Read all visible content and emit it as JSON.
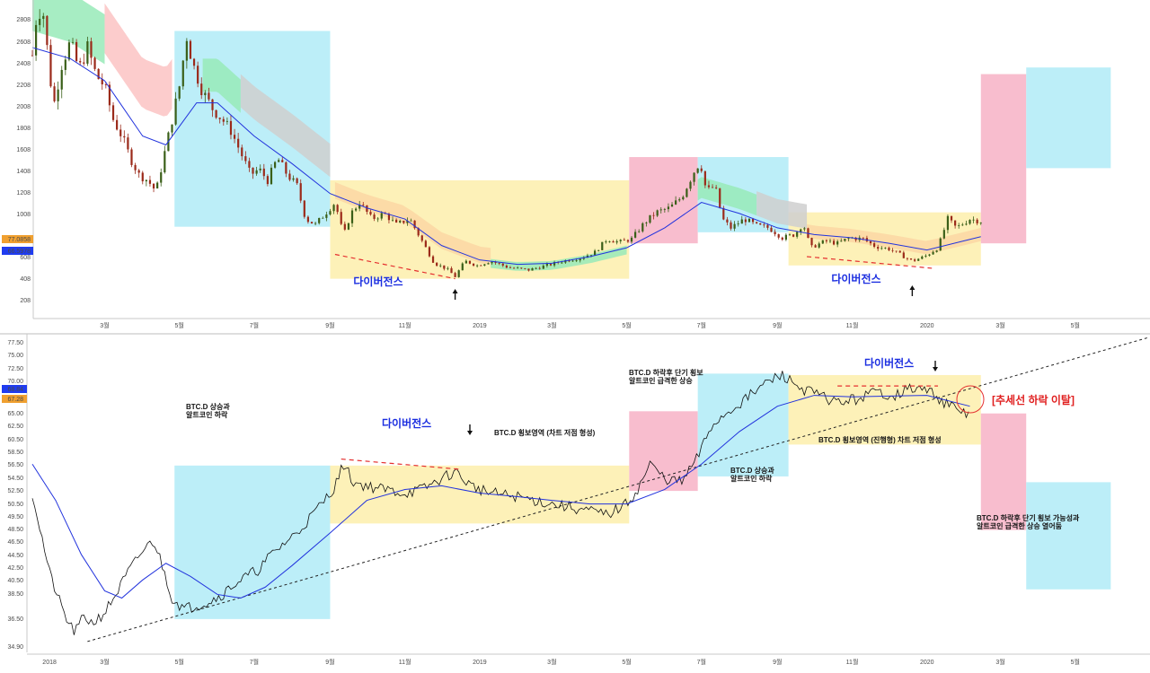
{
  "colors": {
    "zone_blue": "#b5ecf7",
    "zone_yellow": "#fdefb0",
    "zone_pink": "#f7b6c9",
    "cloud_green": "#98eab8",
    "cloud_red": "#fbc3c3",
    "cloud_gray": "#cfcfcf",
    "cloud_orange": "#fcd7a3",
    "ma_line": "#2233dd",
    "candle_up": "#3a5f18",
    "candle_down": "#9b2a1a",
    "price_line": "#111111",
    "divergence": "#e53030",
    "trendline": "#222222",
    "badge_orange": "#f0a030",
    "badge_blue": "#1f3cf0"
  },
  "chart_data": [
    {
      "type": "candlestick",
      "title": "",
      "y_ticks": [
        "2808",
        "2608",
        "2408",
        "2208",
        "2008",
        "1808",
        "1608",
        "1408",
        "1208",
        "1008",
        "608",
        "408",
        "208"
      ],
      "x_ticks": [
        "3월",
        "5월",
        "7월",
        "9월",
        "11월",
        "2019",
        "3월",
        "5월",
        "7월",
        "9월",
        "11월",
        "2020",
        "3월",
        "5월"
      ],
      "price_badges": [
        "77.0858",
        "66.5978"
      ],
      "annotations": [
        "다이버전스",
        "다이버전스"
      ],
      "arrows": [
        "up",
        "up"
      ],
      "zones": [
        {
          "color": "blue",
          "from": "2018-04-27",
          "to": "2018-09-01",
          "y_top": 2600,
          "y_bottom": 830
        },
        {
          "color": "yellow",
          "from": "2018-09-01",
          "to": "2019-05-03",
          "y_top": 1250,
          "y_bottom": 360
        },
        {
          "color": "pink",
          "from": "2019-05-03",
          "to": "2019-06-28",
          "y_top": 1460,
          "y_bottom": 680
        },
        {
          "color": "blue",
          "from": "2019-06-28",
          "to": "2019-09-10",
          "y_top": 1460,
          "y_bottom": 780
        },
        {
          "color": "yellow",
          "from": "2019-09-10",
          "to": "2020-02-14",
          "y_top": 960,
          "y_bottom": 480
        },
        {
          "color": "pink",
          "from": "2020-02-14",
          "to": "2020-03-22",
          "y_top": 2210,
          "y_bottom": 680
        },
        {
          "color": "blue",
          "from": "2020-03-22",
          "to": "2020-05-30",
          "y_top": 2270,
          "y_bottom": 1360
        }
      ],
      "price_path": [
        [
          "2018-01-01",
          2380
        ],
        [
          "2018-01-05",
          2800
        ],
        [
          "2018-01-10",
          2750
        ],
        [
          "2018-01-15",
          2250
        ],
        [
          "2018-01-18",
          1900
        ],
        [
          "2018-01-25",
          2300
        ],
        [
          "2018-02-01",
          2500
        ],
        [
          "2018-02-08",
          2250
        ],
        [
          "2018-02-15",
          2450
        ],
        [
          "2018-02-22",
          2200
        ],
        [
          "2018-03-01",
          2100
        ],
        [
          "2018-03-08",
          1800
        ],
        [
          "2018-03-15",
          1650
        ],
        [
          "2018-03-22",
          1450
        ],
        [
          "2018-03-29",
          1300
        ],
        [
          "2018-04-05",
          1250
        ],
        [
          "2018-04-12",
          1150
        ],
        [
          "2018-04-19",
          1500
        ],
        [
          "2018-04-26",
          1850
        ],
        [
          "2018-05-03",
          2200
        ],
        [
          "2018-05-06",
          2600
        ],
        [
          "2018-05-12",
          2300
        ],
        [
          "2018-05-20",
          2050
        ],
        [
          "2018-05-28",
          1900
        ],
        [
          "2018-06-05",
          1800
        ],
        [
          "2018-06-12",
          1700
        ],
        [
          "2018-06-20",
          1500
        ],
        [
          "2018-06-28",
          1300
        ],
        [
          "2018-07-05",
          1350
        ],
        [
          "2018-07-12",
          1250
        ],
        [
          "2018-07-20",
          1450
        ],
        [
          "2018-07-28",
          1300
        ],
        [
          "2018-08-05",
          1200
        ],
        [
          "2018-08-12",
          900
        ],
        [
          "2018-08-20",
          850
        ],
        [
          "2018-08-28",
          950
        ],
        [
          "2018-09-05",
          1050
        ],
        [
          "2018-09-12",
          750
        ],
        [
          "2018-09-18",
          950
        ],
        [
          "2018-09-25",
          1050
        ],
        [
          "2018-10-05",
          900
        ],
        [
          "2018-10-15",
          950
        ],
        [
          "2018-10-25",
          850
        ],
        [
          "2018-11-05",
          900
        ],
        [
          "2018-11-15",
          700
        ],
        [
          "2018-11-25",
          500
        ],
        [
          "2018-12-05",
          450
        ],
        [
          "2018-12-12",
          380
        ],
        [
          "2018-12-20",
          520
        ],
        [
          "2018-12-30",
          480
        ],
        [
          "2019-01-10",
          520
        ],
        [
          "2019-01-25",
          460
        ],
        [
          "2019-02-10",
          440
        ],
        [
          "2019-02-25",
          480
        ],
        [
          "2019-03-10",
          520
        ],
        [
          "2019-03-25",
          550
        ],
        [
          "2019-04-05",
          600
        ],
        [
          "2019-04-15",
          720
        ],
        [
          "2019-04-25",
          690
        ],
        [
          "2019-05-05",
          720
        ],
        [
          "2019-05-15",
          860
        ],
        [
          "2019-05-25",
          960
        ],
        [
          "2019-06-05",
          1000
        ],
        [
          "2019-06-15",
          1100
        ],
        [
          "2019-06-25",
          1330
        ],
        [
          "2019-06-30",
          1420
        ],
        [
          "2019-07-05",
          1150
        ],
        [
          "2019-07-12",
          1200
        ],
        [
          "2019-07-18",
          900
        ],
        [
          "2019-07-25",
          820
        ],
        [
          "2019-08-05",
          900
        ],
        [
          "2019-08-15",
          840
        ],
        [
          "2019-08-25",
          820
        ],
        [
          "2019-09-05",
          730
        ],
        [
          "2019-09-15",
          760
        ],
        [
          "2019-09-22",
          860
        ],
        [
          "2019-09-28",
          640
        ],
        [
          "2019-10-10",
          700
        ],
        [
          "2019-10-20",
          680
        ],
        [
          "2019-10-30",
          730
        ],
        [
          "2019-11-10",
          720
        ],
        [
          "2019-11-20",
          650
        ],
        [
          "2019-12-01",
          630
        ],
        [
          "2019-12-10",
          580
        ],
        [
          "2019-12-20",
          520
        ],
        [
          "2019-12-30",
          560
        ],
        [
          "2020-01-10",
          640
        ],
        [
          "2020-01-18",
          900
        ],
        [
          "2020-01-25",
          820
        ],
        [
          "2020-02-05",
          900
        ],
        [
          "2020-02-14",
          880
        ]
      ],
      "ma_path": [
        [
          "2018-01-01",
          2450
        ],
        [
          "2018-02-01",
          2350
        ],
        [
          "2018-03-01",
          2150
        ],
        [
          "2018-04-01",
          1650
        ],
        [
          "2018-04-20",
          1570
        ],
        [
          "2018-05-15",
          1950
        ],
        [
          "2018-06-01",
          1950
        ],
        [
          "2018-07-01",
          1650
        ],
        [
          "2018-08-01",
          1400
        ],
        [
          "2018-09-01",
          1130
        ],
        [
          "2018-10-01",
          1000
        ],
        [
          "2018-11-01",
          900
        ],
        [
          "2018-12-01",
          660
        ],
        [
          "2019-01-01",
          530
        ],
        [
          "2019-02-01",
          490
        ],
        [
          "2019-03-01",
          500
        ],
        [
          "2019-04-01",
          560
        ],
        [
          "2019-05-01",
          640
        ],
        [
          "2019-06-01",
          820
        ],
        [
          "2019-07-01",
          1050
        ],
        [
          "2019-08-01",
          950
        ],
        [
          "2019-09-01",
          820
        ],
        [
          "2019-10-01",
          760
        ],
        [
          "2019-11-01",
          730
        ],
        [
          "2019-12-01",
          680
        ],
        [
          "2020-01-01",
          620
        ],
        [
          "2020-02-14",
          740
        ]
      ]
    },
    {
      "type": "line",
      "title": "",
      "y_ticks": [
        "77.50",
        "75.00",
        "72.50",
        "70.00",
        "67.50",
        "65.00",
        "62.50",
        "60.50",
        "58.50",
        "56.50",
        "54.50",
        "52.50",
        "50.50",
        "49.50",
        "48.50",
        "46.50",
        "44.50",
        "42.50",
        "40.50",
        "38.50",
        "36.50",
        "34.90"
      ],
      "x_ticks": [
        "2018",
        "3월",
        "5월",
        "7월",
        "9월",
        "11월",
        "2019",
        "3월",
        "5월",
        "7월",
        "9월",
        "11월",
        "2020",
        "3월",
        "5월"
      ],
      "price_badges": [
        "68.84",
        "67.28"
      ],
      "zones": [
        {
          "color": "blue",
          "from": "2018-04-27",
          "to": "2018-09-01",
          "y_top": 60.3,
          "y_bottom": 39.1
        },
        {
          "color": "yellow",
          "from": "2018-09-01",
          "to": "2019-05-03",
          "y_top": 60.3,
          "y_bottom": 52.3
        },
        {
          "color": "pink",
          "from": "2019-05-03",
          "to": "2019-06-28",
          "y_top": 67.8,
          "y_bottom": 56.8
        },
        {
          "color": "blue",
          "from": "2019-06-28",
          "to": "2019-09-10",
          "y_top": 73.0,
          "y_bottom": 58.8
        },
        {
          "color": "yellow",
          "from": "2019-09-10",
          "to": "2020-02-14",
          "y_top": 72.8,
          "y_bottom": 63.2
        },
        {
          "color": "pink",
          "from": "2020-02-14",
          "to": "2020-03-22",
          "y_top": 67.5,
          "y_bottom": 51.4
        },
        {
          "color": "blue",
          "from": "2020-03-22",
          "to": "2020-05-30",
          "y_top": 58.0,
          "y_bottom": 43.2
        }
      ],
      "series": [
        {
          "values": [
            [
              "2018-01-01",
              56.5
            ],
            [
              "2018-01-08",
              51.0
            ],
            [
              "2018-01-15",
              45.5
            ],
            [
              "2018-01-22",
              42.0
            ],
            [
              "2018-01-29",
              39.0
            ],
            [
              "2018-02-05",
              37.2
            ],
            [
              "2018-02-12",
              39.5
            ],
            [
              "2018-02-19",
              38.5
            ],
            [
              "2018-03-01",
              40.0
            ],
            [
              "2018-03-10",
              42.5
            ],
            [
              "2018-03-20",
              45.5
            ],
            [
              "2018-04-01",
              48.5
            ],
            [
              "2018-04-10",
              50.0
            ],
            [
              "2018-04-18",
              46.0
            ],
            [
              "2018-04-25",
              42.0
            ],
            [
              "2018-05-05",
              40.5
            ],
            [
              "2018-05-15",
              41.0
            ],
            [
              "2018-05-25",
              41.5
            ],
            [
              "2018-06-05",
              42.5
            ],
            [
              "2018-06-15",
              44.0
            ],
            [
              "2018-06-25",
              45.0
            ],
            [
              "2018-07-05",
              46.0
            ],
            [
              "2018-07-15",
              48.0
            ],
            [
              "2018-07-25",
              49.5
            ],
            [
              "2018-08-05",
              51.0
            ],
            [
              "2018-08-15",
              53.0
            ],
            [
              "2018-08-25",
              55.0
            ],
            [
              "2018-09-05",
              57.5
            ],
            [
              "2018-09-12",
              60.5
            ],
            [
              "2018-09-20",
              58.0
            ],
            [
              "2018-10-01",
              57.5
            ],
            [
              "2018-10-15",
              57.0
            ],
            [
              "2018-11-01",
              56.5
            ],
            [
              "2018-11-15",
              57.0
            ],
            [
              "2018-12-01",
              58.5
            ],
            [
              "2018-12-12",
              59.5
            ],
            [
              "2018-12-25",
              57.5
            ],
            [
              "2019-01-10",
              56.5
            ],
            [
              "2019-02-01",
              56.0
            ],
            [
              "2019-03-01",
              55.0
            ],
            [
              "2019-04-01",
              54.0
            ],
            [
              "2019-04-15",
              53.5
            ],
            [
              "2019-05-01",
              55.0
            ],
            [
              "2019-05-10",
              57.0
            ],
            [
              "2019-05-20",
              60.5
            ],
            [
              "2019-06-01",
              58.5
            ],
            [
              "2019-06-15",
              58.0
            ],
            [
              "2019-06-28",
              61.5
            ],
            [
              "2019-07-10",
              66.0
            ],
            [
              "2019-07-25",
              68.0
            ],
            [
              "2019-08-10",
              70.0
            ],
            [
              "2019-08-25",
              72.0
            ],
            [
              "2019-09-05",
              72.8
            ],
            [
              "2019-09-20",
              71.0
            ],
            [
              "2019-10-05",
              70.0
            ],
            [
              "2019-10-20",
              69.0
            ],
            [
              "2019-11-05",
              69.5
            ],
            [
              "2019-11-20",
              70.5
            ],
            [
              "2019-12-05",
              70.0
            ],
            [
              "2019-12-20",
              71.0
            ],
            [
              "2020-01-05",
              70.5
            ],
            [
              "2020-01-15",
              69.0
            ],
            [
              "2020-01-25",
              68.0
            ],
            [
              "2020-02-05",
              67.3
            ]
          ]
        },
        {
          "values": [
            [
              "2018-01-01",
              60.5
            ],
            [
              "2018-01-20",
              55.5
            ],
            [
              "2018-02-10",
              48.0
            ],
            [
              "2018-03-01",
              43.0
            ],
            [
              "2018-03-15",
              42.0
            ],
            [
              "2018-04-01",
              44.5
            ],
            [
              "2018-04-20",
              46.8
            ],
            [
              "2018-05-10",
              45.0
            ],
            [
              "2018-06-01",
              42.5
            ],
            [
              "2018-06-20",
              42.0
            ],
            [
              "2018-07-10",
              43.5
            ],
            [
              "2018-08-01",
              46.5
            ],
            [
              "2018-09-01",
              51.0
            ],
            [
              "2018-10-01",
              55.5
            ],
            [
              "2018-11-01",
              57.0
            ],
            [
              "2018-12-01",
              57.5
            ],
            [
              "2019-01-01",
              56.5
            ],
            [
              "2019-02-01",
              56.0
            ],
            [
              "2019-03-01",
              55.5
            ],
            [
              "2019-04-01",
              55.0
            ],
            [
              "2019-05-01",
              55.0
            ],
            [
              "2019-06-01",
              57.0
            ],
            [
              "2019-07-01",
              60.5
            ],
            [
              "2019-08-01",
              65.0
            ],
            [
              "2019-09-01",
              68.5
            ],
            [
              "2019-10-01",
              70.0
            ],
            [
              "2019-11-01",
              69.8
            ],
            [
              "2019-12-01",
              69.9
            ],
            [
              "2020-01-01",
              70.0
            ],
            [
              "2020-02-05",
              68.5
            ]
          ]
        }
      ],
      "trendline": [
        [
          "2018-02-15",
          36.0
        ],
        [
          "2020-06-30",
          78.0
        ]
      ],
      "annotations": [
        "BTC.D 상승과",
        "알트코인 하락",
        "다이버전스",
        "BTC.D 횡보영역 (차트 저점 형성)",
        "BTC.D 하락후 단기 횡보",
        "알트코인 급격한 상승",
        "BTC.D 상승과",
        "알트코인 하락",
        "다이버전스",
        "[추세선 하락 이탈]",
        "BTC.D 횡보영역 (진행형) 차트 저점 형성",
        "BTC.D 하락후 단기 횡보 가능성과",
        "알트코인 급격한 상승 열어둠"
      ],
      "arrows": [
        "down",
        "down"
      ]
    }
  ]
}
